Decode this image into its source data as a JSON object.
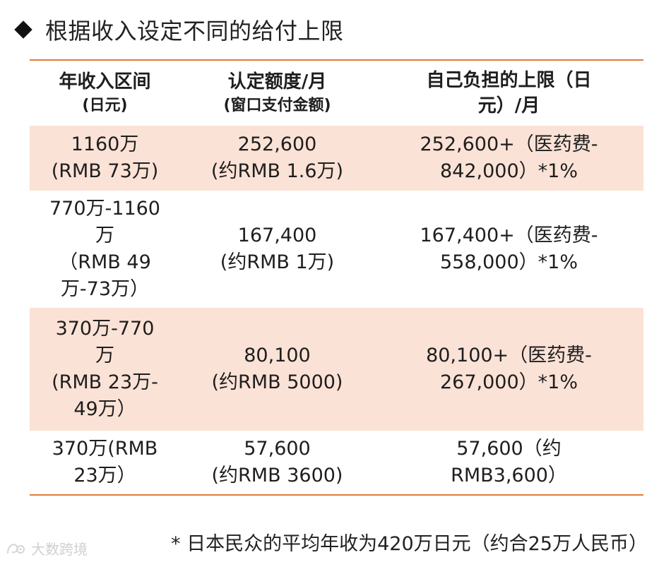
{
  "title": "根据收入设定不同的给付上限",
  "table": {
    "headers": [
      {
        "line1": "年收入区间",
        "line2": "(日元)"
      },
      {
        "line1": "认定额度/月",
        "line2": "(窗口支付金额)"
      },
      {
        "line1": "自己负担的上限（日",
        "line2": "元）/月"
      }
    ],
    "rows": [
      {
        "col1": [
          "1160万",
          "(RMB 73万)"
        ],
        "col2": [
          "252,600",
          "(约RMB  1.6万)"
        ],
        "col3": [
          "252,600+（医药费-",
          "842,000）*1%"
        ]
      },
      {
        "col1": [
          "770万-1160",
          "万",
          "（RMB 49",
          "万-73万）"
        ],
        "col2": [
          "167,400",
          "(约RMB  1万)"
        ],
        "col3": [
          "167,400+（医药费-",
          "558,000）*1%"
        ]
      },
      {
        "col1": [
          "370万-770",
          "万",
          "(RMB 23万-",
          "49万）"
        ],
        "col2": [
          "80,100",
          "(约RMB 5000)"
        ],
        "col3": [
          "80,100+（医药费-",
          "267,000）*1%"
        ]
      },
      {
        "col1": [
          "370万(RMB",
          "23万）"
        ],
        "col2": [
          "57,600",
          "(约RMB 3600)"
        ],
        "col3": [
          "57,600（约",
          "RMB3,600）"
        ]
      }
    ]
  },
  "footnote": "* 日本民众的平均年收为420万日元（约合25万人民币）",
  "watermark": {
    "icon": "watermark-logo",
    "text": "大数跨境"
  },
  "colors": {
    "accent_line": "#e07b39",
    "row_shade": "#fbe2d6",
    "diamond": "#111111"
  }
}
